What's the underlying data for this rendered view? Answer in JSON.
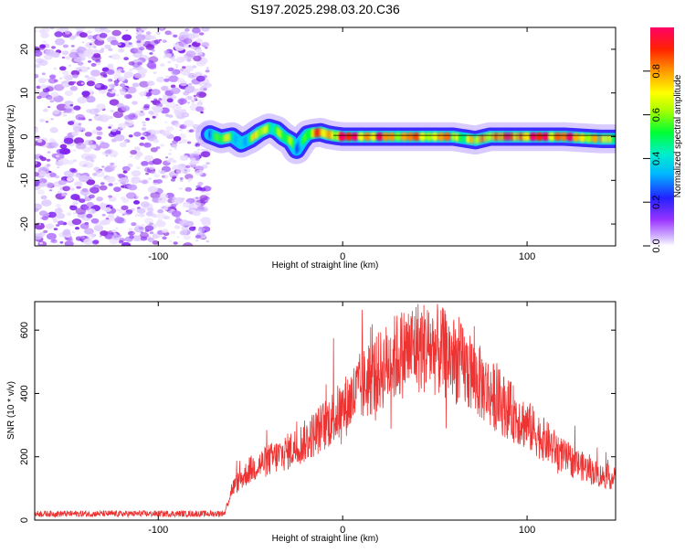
{
  "title": "S197.2025.298.03.20.C36",
  "chart_data": [
    {
      "type": "heatmap",
      "xlabel": "Height of straight line (km)",
      "ylabel": "Frequency (Hz)",
      "xlim": [
        -167,
        148
      ],
      "ylim": [
        -25,
        25
      ],
      "x_ticks": [
        -100,
        0,
        100
      ],
      "y_ticks": [
        -20,
        -10,
        0,
        10,
        20
      ],
      "colorbar": {
        "label": "Normalized spectral amplitude",
        "range": [
          0,
          1
        ],
        "ticks": [
          0.0,
          0.2,
          0.4,
          0.6,
          0.8
        ],
        "ticks_text": [
          "0.0",
          "0.2",
          "0.4",
          "0.6",
          "0.8"
        ]
      },
      "noise_region": {
        "x_from": -167,
        "x_to": -73,
        "amplitude": 0.15
      },
      "signal_ridge": {
        "height": [
          -72,
          -66,
          -60,
          -55,
          -50,
          -45,
          -40,
          -36,
          -32,
          -28,
          -25,
          -22,
          -19,
          -16,
          -12,
          -8,
          -4,
          0,
          20,
          40,
          60,
          72,
          80,
          90,
          100,
          120,
          140,
          148
        ],
        "frequency": [
          0.5,
          -0.5,
          0,
          -1.5,
          -0.5,
          1.0,
          2.0,
          1.5,
          0.0,
          -1.0,
          -3.0,
          -1.0,
          0.5,
          0.8,
          1.0,
          0.5,
          0.2,
          0.0,
          0.0,
          0.0,
          0.0,
          -0.8,
          0.0,
          0.0,
          0.0,
          0.0,
          -0.5,
          -0.5
        ],
        "amplitude": [
          0.45,
          0.55,
          0.5,
          0.4,
          0.5,
          0.6,
          0.65,
          0.6,
          0.5,
          0.45,
          0.35,
          0.55,
          0.6,
          0.7,
          0.7,
          0.75,
          0.8,
          0.9,
          0.8,
          0.75,
          0.7,
          0.6,
          0.85,
          0.8,
          0.9,
          0.85,
          0.7,
          0.6
        ]
      }
    },
    {
      "type": "line",
      "xlabel": "Height of straight line (km)",
      "ylabel": "SNR (10 * v/v)",
      "xlim": [
        -167,
        148
      ],
      "ylim": [
        0,
        690
      ],
      "x_ticks": [
        -100,
        0,
        100
      ],
      "y_ticks": [
        0,
        200,
        400,
        600
      ],
      "series": [
        {
          "name": "SNR",
          "color": "#ee3333",
          "x": [
            -167,
            -140,
            -110,
            -80,
            -70,
            -64,
            -60,
            -50,
            -40,
            -30,
            -20,
            -10,
            0,
            10,
            20,
            30,
            40,
            50,
            60,
            70,
            80,
            90,
            100,
            110,
            120,
            130,
            140,
            148
          ],
          "y": [
            20,
            20,
            20,
            20,
            20,
            22,
            100,
            160,
            190,
            215,
            250,
            300,
            350,
            420,
            470,
            520,
            550,
            540,
            510,
            460,
            400,
            350,
            300,
            250,
            200,
            170,
            140,
            130
          ]
        }
      ]
    }
  ]
}
